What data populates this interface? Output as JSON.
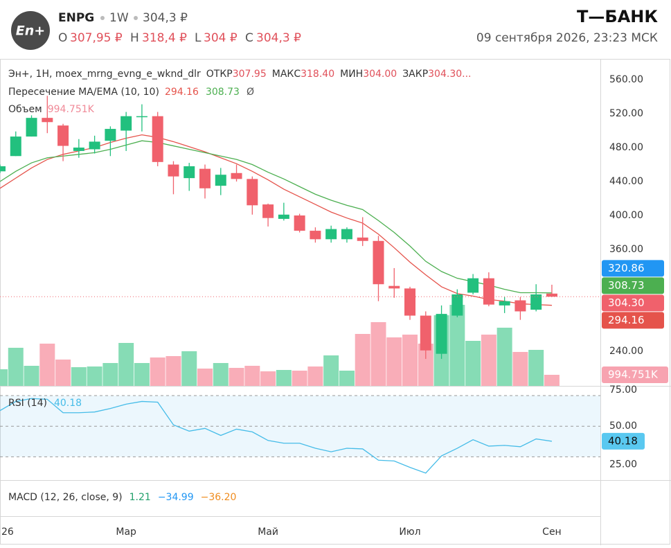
{
  "header": {
    "logo": "En+",
    "ticker": "ENPG",
    "interval": "1W",
    "price": "304,3 ₽",
    "ohlc": [
      {
        "name": "O",
        "value": "307,95 ₽"
      },
      {
        "name": "H",
        "value": "318,4 ₽"
      },
      {
        "name": "L",
        "value": "304 ₽"
      },
      {
        "name": "C",
        "value": "304,3 ₽"
      }
    ],
    "brand": "Т—БАНК",
    "datetime": "09 сентября 2026, 23:23 МСК"
  },
  "legend": {
    "symbol": "Эн+, 1H, moex_mrng_evng_e_wknd_dlr",
    "fields": [
      {
        "name": "ОТКР",
        "label": "307.95"
      },
      {
        "name": "МАКС",
        "label": "318.40"
      },
      {
        "name": "МИН",
        "label": "304.00"
      },
      {
        "name": "ЗАКР",
        "label": "304.30..."
      }
    ],
    "indicator": "Пересечение MA/EMA (10, 10)",
    "indicator_icon": "Ø",
    "volume": "Объем"
  },
  "macd_legend": {
    "title": "MACD (12, 26, close, 9)",
    "histogram": "1.21",
    "macd": "−34.99",
    "signal": "−36.20"
  },
  "chart_data": [
    {
      "type": "candlestick",
      "categories": [
        "26",
        null,
        null,
        null,
        null,
        null,
        null,
        null,
        "Мар",
        null,
        null,
        null,
        null,
        null,
        null,
        null,
        null,
        "Май",
        null,
        null,
        null,
        null,
        null,
        null,
        null,
        null,
        "Июл",
        null,
        null,
        null,
        null,
        null,
        null,
        null,
        null,
        "Сен"
      ],
      "open": [
        452,
        470,
        493,
        515,
        506,
        476,
        478,
        488,
        500,
        517,
        517,
        460,
        444,
        455,
        435,
        450,
        443,
        413,
        396,
        400,
        382,
        372,
        372,
        374,
        370,
        317,
        314,
        282,
        237,
        282,
        309,
        326,
        294,
        300,
        289,
        307.95
      ],
      "high": [
        460,
        499,
        518,
        541,
        508,
        490,
        494,
        505,
        522,
        531,
        522,
        464,
        462,
        460,
        456,
        460,
        446,
        414,
        415,
        402,
        386,
        388,
        386,
        398,
        376,
        338,
        316,
        287,
        294,
        313,
        331,
        333,
        304,
        304,
        319,
        318.4
      ],
      "low": [
        450,
        470,
        493,
        497,
        464,
        468,
        473,
        470,
        476,
        499,
        458,
        425,
        429,
        420,
        424,
        440,
        401,
        387,
        394,
        380,
        368,
        368,
        368,
        364,
        299,
        303,
        277,
        231,
        231,
        280,
        307,
        293,
        285,
        277,
        287,
        304
      ],
      "close": [
        458,
        493,
        515,
        510,
        482,
        480,
        487,
        502,
        517,
        517,
        463,
        446,
        458,
        432,
        448,
        443,
        412,
        397,
        401,
        382,
        372,
        384,
        384,
        370,
        319,
        314,
        282,
        241,
        284,
        307,
        326,
        295,
        299,
        287,
        307,
        304.3
      ],
      "colors": {
        "up": "#22c07e",
        "down": "#f0616c"
      },
      "close_label": "304.30",
      "series": [
        {
          "color": "#e5534b",
          "values": [
            432,
            444,
            456,
            466,
            472,
            476,
            480,
            486,
            491,
            495,
            492,
            487,
            481,
            475,
            468,
            461,
            452,
            442,
            431,
            422,
            413,
            404,
            397,
            391,
            378,
            362,
            345,
            330,
            316,
            308,
            305,
            301,
            299,
            296,
            295,
            294.16
          ]
        },
        {
          "color": "#4caf50",
          "values": [
            440,
            452,
            462,
            468,
            470,
            472,
            474,
            478,
            483,
            488,
            486,
            482,
            478,
            474,
            470,
            466,
            460,
            451,
            443,
            434,
            425,
            418,
            412,
            407,
            394,
            380,
            364,
            346,
            334,
            326,
            322,
            318,
            313,
            309,
            309,
            308.73
          ]
        }
      ],
      "extra_badge": {
        "value": 320.86,
        "color": "#2196f3"
      },
      "volume": {
        "values": [
          1492000,
          3420000,
          1803000,
          3792000,
          2363000,
          1679000,
          1741000,
          2052000,
          3855000,
          2052000,
          2549000,
          2673000,
          3109000,
          1554000,
          2052000,
          1616000,
          1803000,
          1306000,
          1430000,
          1368000,
          1741000,
          2736000,
          1368000,
          4663000,
          5720000,
          4352000,
          4601000,
          3792000,
          6342000,
          7274000,
          4041000,
          4601000,
          5222000,
          3046000,
          3233000,
          994751
        ],
        "value_labels": [
          null,
          null,
          null,
          null,
          null,
          null,
          null,
          null,
          null,
          null,
          null,
          null,
          null,
          null,
          null,
          null,
          null,
          null,
          null,
          null,
          null,
          null,
          null,
          null,
          null,
          null,
          null,
          null,
          null,
          null,
          null,
          null,
          null,
          null,
          null,
          "994.751K"
        ],
        "colors": {
          "up": "#86dcb5",
          "down": "#f9adb8"
        }
      },
      "ylim": [
        199.2,
        584.5
      ],
      "yticks": [
        {
          "value": 240,
          "label": "240.00"
        },
        {
          "value": 360,
          "label": "360.00"
        },
        {
          "value": 400,
          "label": "400.00"
        },
        {
          "value": 440,
          "label": "440.00"
        },
        {
          "value": 480,
          "label": "480.00"
        },
        {
          "value": 520,
          "label": "520.00"
        },
        {
          "value": 560,
          "label": "560.00"
        }
      ]
    },
    {
      "type": "line",
      "title": "RSI (14)",
      "color": "#45bce8",
      "values": [
        60.2,
        66.2,
        68.1,
        67.6,
        58.8,
        58.8,
        59.3,
        61.6,
        64.4,
        66.2,
        65.7,
        50.9,
        46.8,
        48.6,
        44.0,
        48.1,
        46.3,
        40.7,
        38.9,
        38.9,
        35.6,
        33.3,
        35.6,
        35.2,
        27.8,
        27.3,
        23.1,
        19.4,
        30.6,
        35.6,
        41.2,
        37.0,
        37.5,
        36.6,
        41.7,
        40.18
      ],
      "band": [
        30,
        70
      ],
      "midline": 50,
      "ylim": [
        14.8,
        75.9
      ],
      "yticks": [
        {
          "value": 25,
          "label": "25.00"
        },
        {
          "value": 50,
          "label": "50.00"
        },
        {
          "value": 75,
          "label": "75.00"
        }
      ]
    }
  ]
}
